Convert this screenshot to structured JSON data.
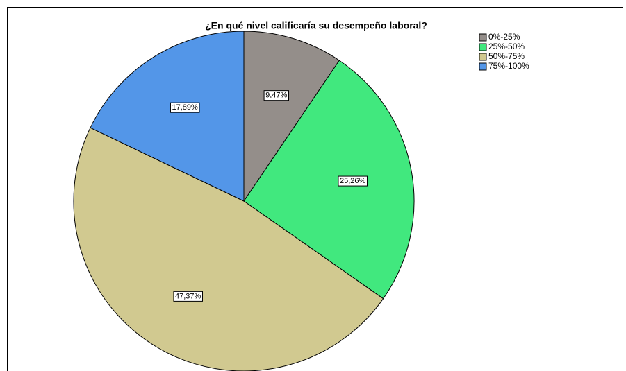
{
  "chart_data": {
    "type": "pie",
    "title": "¿En qué nivel calificaría su desempeño laboral?",
    "categories": [
      "0%-25%",
      "25%-50%",
      "50%-75%",
      "75%-100%"
    ],
    "values": [
      9.47,
      25.26,
      47.37,
      17.89
    ],
    "value_labels": [
      "9,47%",
      "25,26%",
      "47,37%",
      "17,89%"
    ],
    "colors": [
      "#948e8a",
      "#41e87e",
      "#d1c990",
      "#5396e8"
    ],
    "legend": "top-right"
  }
}
